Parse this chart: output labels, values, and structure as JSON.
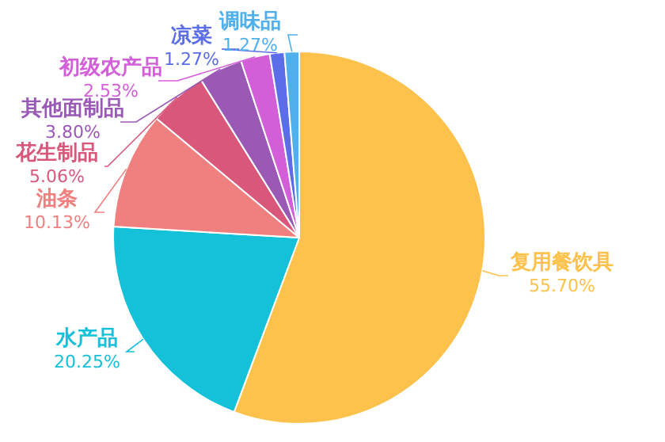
{
  "chart_data": {
    "type": "pie",
    "categories": [
      "复用餐饮具",
      "水产品",
      "油条",
      "花生制品",
      "其他面制品",
      "初级农产品",
      "凉菜",
      "调味品"
    ],
    "values": [
      55.7,
      20.25,
      10.13,
      5.06,
      3.8,
      2.53,
      1.27,
      1.27
    ],
    "value_labels": [
      "55.70%",
      "20.25%",
      "10.13%",
      "5.06%",
      "3.80%",
      "2.53%",
      "1.27%",
      "1.27%"
    ],
    "colors": [
      "#fcc24c",
      "#14c1d8",
      "#f08080",
      "#d9577a",
      "#9b59b6",
      "#d35fd8",
      "#5b6ee8",
      "#4fb0ec"
    ],
    "legend": false
  }
}
